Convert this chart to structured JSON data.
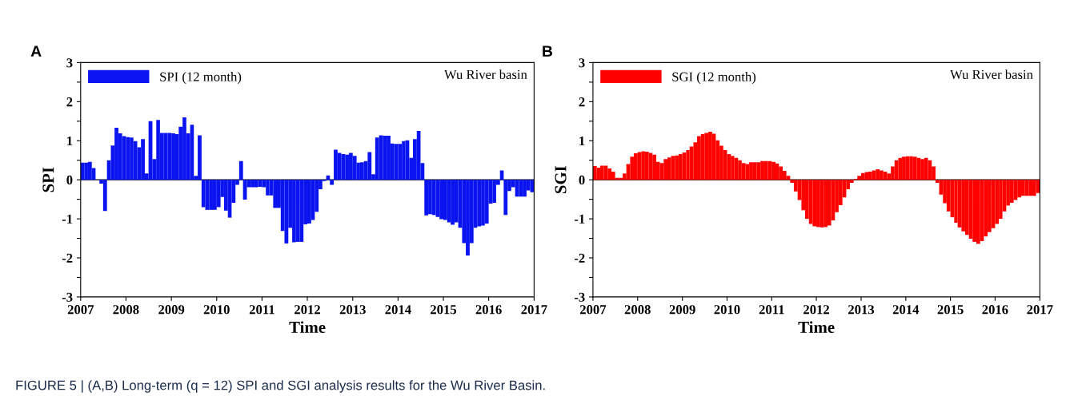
{
  "chart_data": [
    {
      "type": "bar",
      "xlabel": "Time",
      "ylabel": "SPI",
      "xlim": [
        "2007",
        "2017"
      ],
      "xticks": [
        "2007",
        "2008",
        "2009",
        "2010",
        "2011",
        "2012",
        "2013",
        "2014",
        "2015",
        "2016",
        "2017"
      ],
      "ylim": [
        -3,
        3
      ],
      "yticks": [
        -3,
        {
          "value": -2.5,
          "label": null
        },
        -2,
        {
          "value": -1.5,
          "label": null
        },
        -1,
        {
          "value": -0.5,
          "label": null
        },
        0,
        {
          "value": 0.5,
          "label": null
        },
        1,
        {
          "value": 1.5,
          "label": null
        },
        2,
        {
          "value": 2.5,
          "label": null
        },
        3
      ],
      "legend": "top left",
      "grid": false,
      "ref_lines": [
        {
          "axis": "y",
          "value": 0,
          "color": "#000000"
        }
      ],
      "annotations": [
        "A",
        "Wu River basin",
        "FIGURE 5 | (A,B) Long-term (q = 12) SPI and SGI analysis results for the Wu River Basin."
      ],
      "series": [
        {
          "name": "SPI (12 month)",
          "color": "#0a14f0",
          "values": [
            0.44,
            0.44,
            0.46,
            0.3,
            0,
            -0.1,
            -0.8,
            0.5,
            0.88,
            1.33,
            1.19,
            1.12,
            1.09,
            1.08,
            0.99,
            0.83,
            1.04,
            0.16,
            1.5,
            0.53,
            1.53,
            1.2,
            1.2,
            1.2,
            1.19,
            1.17,
            1.36,
            1.6,
            1.19,
            1.41,
            0.1,
            1.14,
            -0.7,
            -0.77,
            -0.77,
            -0.77,
            -0.7,
            -0.44,
            -0.79,
            -0.97,
            -0.59,
            -0.13,
            0.48,
            -0.51,
            -0.19,
            -0.19,
            -0.19,
            -0.18,
            -0.19,
            -0.4,
            -0.4,
            -0.72,
            -0.72,
            -1.31,
            -1.63,
            -1.23,
            -1.6,
            -1.59,
            -1.59,
            -1.14,
            -1.12,
            -1.03,
            -0.82,
            -0.24,
            -0.03,
            0.11,
            -0.13,
            0.77,
            0.69,
            0.66,
            0.64,
            0.69,
            0.61,
            0.44,
            0.45,
            0.48,
            0.71,
            0.14,
            1.08,
            1.14,
            1.13,
            1.13,
            0.93,
            0.92,
            0.92,
            0.99,
            1.01,
            0.56,
            1.04,
            1.25,
            0.43,
            -0.91,
            -0.88,
            -0.9,
            -0.95,
            -1.01,
            -1.03,
            -1.09,
            -1.15,
            -1.09,
            -1.23,
            -1.62,
            -1.94,
            -1.62,
            -1.23,
            -1.19,
            -1.17,
            -1.12,
            -0.61,
            -0.59,
            -0.13,
            0.24,
            -0.9,
            -0.29,
            -0.19,
            -0.43,
            -0.43,
            -0.43,
            -0.27,
            -0.32
          ],
          "x": [
            "2007-01",
            "2007-02",
            "2007-03",
            "2007-04",
            "2007-05",
            "2007-06",
            "2007-07",
            "2007-08",
            "2007-09",
            "2007-10",
            "2007-11",
            "2007-12",
            "2008-01",
            "2008-02",
            "2008-03",
            "2008-04",
            "2008-05",
            "2008-06",
            "2008-07",
            "2008-08",
            "2008-09",
            "2008-10",
            "2008-11",
            "2008-12",
            "2009-01",
            "2009-02",
            "2009-03",
            "2009-04",
            "2009-05",
            "2009-06",
            "2009-07",
            "2009-08",
            "2009-09",
            "2009-10",
            "2009-11",
            "2009-12",
            "2010-01",
            "2010-02",
            "2010-03",
            "2010-04",
            "2010-05",
            "2010-06",
            "2010-07",
            "2010-08",
            "2010-09",
            "2010-10",
            "2010-11",
            "2010-12",
            "2011-01",
            "2011-02",
            "2011-03",
            "2011-04",
            "2011-05",
            "2011-06",
            "2011-07",
            "2011-08",
            "2011-09",
            "2011-10",
            "2011-11",
            "2011-12",
            "2012-01",
            "2012-02",
            "2012-03",
            "2012-04",
            "2012-05",
            "2012-06",
            "2012-07",
            "2012-08",
            "2012-09",
            "2012-10",
            "2012-11",
            "2012-12",
            "2013-01",
            "2013-02",
            "2013-03",
            "2013-04",
            "2013-05",
            "2013-06",
            "2013-07",
            "2013-08",
            "2013-09",
            "2013-10",
            "2013-11",
            "2013-12",
            "2014-01",
            "2014-02",
            "2014-03",
            "2014-04",
            "2014-05",
            "2014-06",
            "2014-07",
            "2014-08",
            "2014-09",
            "2014-10",
            "2014-11",
            "2014-12",
            "2015-01",
            "2015-02",
            "2015-03",
            "2015-04",
            "2015-05",
            "2015-06",
            "2015-07",
            "2015-08",
            "2015-09",
            "2015-10",
            "2015-11",
            "2015-12",
            "2016-01",
            "2016-02",
            "2016-03",
            "2016-04",
            "2016-05",
            "2016-06",
            "2016-07",
            "2016-08",
            "2016-09",
            "2016-10",
            "2016-11",
            "2016-12"
          ]
        }
      ]
    },
    {
      "type": "bar",
      "xlabel": "Time",
      "ylabel": "SGI",
      "xlim": [
        "2007",
        "2017"
      ],
      "xticks": [
        "2007",
        "2008",
        "2009",
        "2010",
        "2011",
        "2012",
        "2013",
        "2014",
        "2015",
        "2016",
        "2017"
      ],
      "ylim": [
        -3,
        3
      ],
      "yticks": [
        -3,
        {
          "value": -2.5,
          "label": null
        },
        -2,
        {
          "value": -1.5,
          "label": null
        },
        -1,
        {
          "value": -0.5,
          "label": null
        },
        0,
        {
          "value": 0.5,
          "label": null
        },
        1,
        {
          "value": 1.5,
          "label": null
        },
        2,
        {
          "value": 2.5,
          "label": null
        },
        3
      ],
      "legend": "top left",
      "grid": false,
      "ref_lines": [
        {
          "axis": "y",
          "value": 0,
          "color": "#000000"
        }
      ],
      "annotations": [
        "B",
        "Wu River basin"
      ],
      "series": [
        {
          "name": "SGI (12 month)",
          "color": "#ff0000",
          "values": [
            0.35,
            0.31,
            0.36,
            0.36,
            0.29,
            0.21,
            0.05,
            0.05,
            0.16,
            0.4,
            0.59,
            0.68,
            0.71,
            0.73,
            0.72,
            0.69,
            0.64,
            0.46,
            0.43,
            0.53,
            0.57,
            0.61,
            0.62,
            0.66,
            0.7,
            0.76,
            0.85,
            0.96,
            1.12,
            1.17,
            1.2,
            1.23,
            1.18,
            1.01,
            0.87,
            0.76,
            0.66,
            0.61,
            0.56,
            0.5,
            0.43,
            0.4,
            0.45,
            0.45,
            0.45,
            0.48,
            0.48,
            0.48,
            0.46,
            0.42,
            0.34,
            0.23,
            0.1,
            -0.08,
            -0.3,
            -0.52,
            -0.78,
            -1.0,
            -1.13,
            -1.19,
            -1.21,
            -1.22,
            -1.21,
            -1.17,
            -1.04,
            -0.83,
            -0.65,
            -0.45,
            -0.24,
            -0.08,
            0.02,
            0.1,
            0.17,
            0.2,
            0.21,
            0.24,
            0.27,
            0.24,
            0.21,
            0.16,
            0.34,
            0.5,
            0.56,
            0.59,
            0.6,
            0.6,
            0.59,
            0.56,
            0.53,
            0.56,
            0.5,
            0.34,
            -0.08,
            -0.38,
            -0.6,
            -0.81,
            -0.96,
            -1.1,
            -1.22,
            -1.32,
            -1.41,
            -1.51,
            -1.59,
            -1.64,
            -1.57,
            -1.45,
            -1.34,
            -1.24,
            -1.13,
            -1.0,
            -0.81,
            -0.66,
            -0.59,
            -0.52,
            -0.45,
            -0.41,
            -0.41,
            -0.41,
            -0.41,
            -0.34
          ],
          "x": [
            "2007-01",
            "2007-02",
            "2007-03",
            "2007-04",
            "2007-05",
            "2007-06",
            "2007-07",
            "2007-08",
            "2007-09",
            "2007-10",
            "2007-11",
            "2007-12",
            "2008-01",
            "2008-02",
            "2008-03",
            "2008-04",
            "2008-05",
            "2008-06",
            "2008-07",
            "2008-08",
            "2008-09",
            "2008-10",
            "2008-11",
            "2008-12",
            "2009-01",
            "2009-02",
            "2009-03",
            "2009-04",
            "2009-05",
            "2009-06",
            "2009-07",
            "2009-08",
            "2009-09",
            "2009-10",
            "2009-11",
            "2009-12",
            "2010-01",
            "2010-02",
            "2010-03",
            "2010-04",
            "2010-05",
            "2010-06",
            "2010-07",
            "2010-08",
            "2010-09",
            "2010-10",
            "2010-11",
            "2010-12",
            "2011-01",
            "2011-02",
            "2011-03",
            "2011-04",
            "2011-05",
            "2011-06",
            "2011-07",
            "2011-08",
            "2011-09",
            "2011-10",
            "2011-11",
            "2011-12",
            "2012-01",
            "2012-02",
            "2012-03",
            "2012-04",
            "2012-05",
            "2012-06",
            "2012-07",
            "2012-08",
            "2012-09",
            "2012-10",
            "2012-11",
            "2012-12",
            "2013-01",
            "2013-02",
            "2013-03",
            "2013-04",
            "2013-05",
            "2013-06",
            "2013-07",
            "2013-08",
            "2013-09",
            "2013-10",
            "2013-11",
            "2013-12",
            "2014-01",
            "2014-02",
            "2014-03",
            "2014-04",
            "2014-05",
            "2014-06",
            "2014-07",
            "2014-08",
            "2014-09",
            "2014-10",
            "2014-11",
            "2014-12",
            "2015-01",
            "2015-02",
            "2015-03",
            "2015-04",
            "2015-05",
            "2015-06",
            "2015-07",
            "2015-08",
            "2015-09",
            "2015-10",
            "2015-11",
            "2015-12",
            "2016-01",
            "2016-02",
            "2016-03",
            "2016-04",
            "2016-05",
            "2016-06",
            "2016-07",
            "2016-08",
            "2016-09",
            "2016-10",
            "2016-11",
            "2016-12"
          ]
        }
      ]
    }
  ]
}
